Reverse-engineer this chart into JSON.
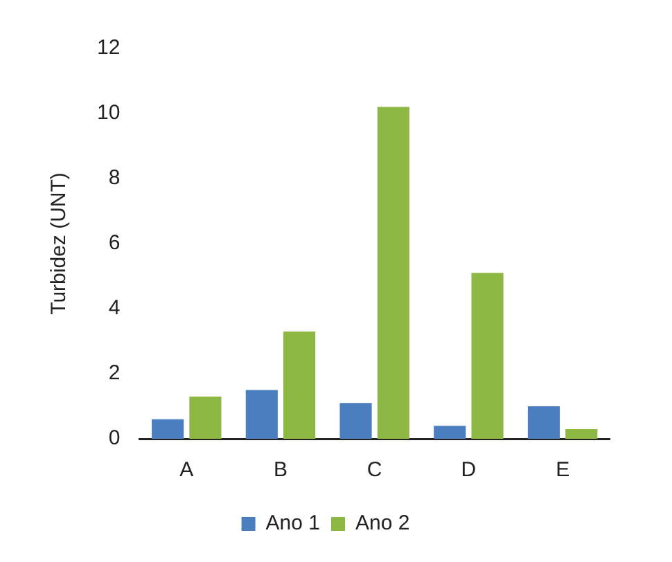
{
  "chart_data": {
    "type": "bar",
    "ylabel": "Turbidez (UNT)",
    "categories": [
      "A",
      "B",
      "C",
      "D",
      "E"
    ],
    "series": [
      {
        "name": "Ano 1",
        "color": "#4a7ebf",
        "values": [
          0.6,
          1.5,
          1.1,
          0.4,
          1.0
        ]
      },
      {
        "name": "Ano 2",
        "color": "#8db843",
        "values": [
          1.3,
          3.3,
          10.2,
          5.1,
          0.3
        ]
      }
    ],
    "ylim": [
      0,
      12
    ],
    "yticks": [
      0,
      2,
      4,
      6,
      8,
      10,
      12
    ],
    "legend": "bottom"
  }
}
